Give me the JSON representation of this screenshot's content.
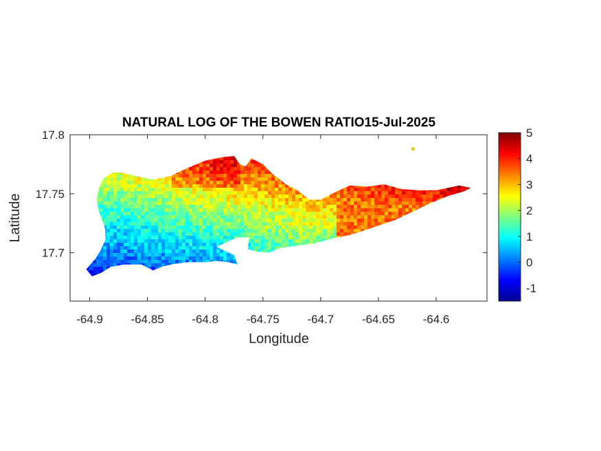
{
  "chart_data": {
    "type": "heatmap",
    "title": "NATURAL LOG OF THE BOWEN RATIO15-Jul-2025",
    "xlabel": "Longitude",
    "ylabel": "Latitude",
    "xlim": [
      -64.92,
      -64.55
    ],
    "ylim": [
      17.66,
      17.8
    ],
    "xticks": [
      -64.9,
      -64.85,
      -64.8,
      -64.75,
      -64.7,
      -64.65,
      -64.6
    ],
    "xtick_labels": [
      "-64.9",
      "-64.85",
      "-64.8",
      "-64.75",
      "-64.7",
      "-64.65",
      "-64.6"
    ],
    "yticks": [
      17.7,
      17.75,
      17.8
    ],
    "ytick_labels": [
      "17.7",
      "17.75",
      "17.8"
    ],
    "colorbar": {
      "colormap": "jet",
      "clim": [
        -1.5,
        5
      ],
      "ticks": [
        -1,
        0,
        1,
        2,
        3,
        4,
        5
      ],
      "tick_labels": [
        "-1",
        "0",
        "1",
        "2",
        "3",
        "4",
        "5"
      ],
      "placement": "right"
    },
    "grid": false,
    "field_trend": "values increase from about -1 in the southwest to about 4.5 in the north-central and eastern parts of the island",
    "island_outline_lonlat": [
      [
        -64.898,
        17.68
      ],
      [
        -64.89,
        17.683
      ],
      [
        -64.882,
        17.688
      ],
      [
        -64.87,
        17.69
      ],
      [
        -64.855,
        17.69
      ],
      [
        -64.845,
        17.685
      ],
      [
        -64.838,
        17.688
      ],
      [
        -64.83,
        17.69
      ],
      [
        -64.815,
        17.692
      ],
      [
        -64.8,
        17.692
      ],
      [
        -64.79,
        17.693
      ],
      [
        -64.78,
        17.692
      ],
      [
        -64.772,
        17.69
      ],
      [
        -64.775,
        17.698
      ],
      [
        -64.79,
        17.705
      ],
      [
        -64.772,
        17.713
      ],
      [
        -64.762,
        17.713
      ],
      [
        -64.763,
        17.703
      ],
      [
        -64.755,
        17.701
      ],
      [
        -64.745,
        17.7
      ],
      [
        -64.735,
        17.704
      ],
      [
        -64.72,
        17.706
      ],
      [
        -64.705,
        17.708
      ],
      [
        -64.69,
        17.712
      ],
      [
        -64.675,
        17.715
      ],
      [
        -64.665,
        17.718
      ],
      [
        -64.65,
        17.723
      ],
      [
        -64.635,
        17.728
      ],
      [
        -64.62,
        17.735
      ],
      [
        -64.605,
        17.742
      ],
      [
        -64.59,
        17.748
      ],
      [
        -64.576,
        17.752
      ],
      [
        -64.57,
        17.755
      ],
      [
        -64.58,
        17.757
      ],
      [
        -64.6,
        17.753
      ],
      [
        -64.615,
        17.753
      ],
      [
        -64.63,
        17.754
      ],
      [
        -64.645,
        17.758
      ],
      [
        -64.66,
        17.756
      ],
      [
        -64.675,
        17.757
      ],
      [
        -64.69,
        17.75
      ],
      [
        -64.7,
        17.745
      ],
      [
        -64.71,
        17.745
      ],
      [
        -64.72,
        17.753
      ],
      [
        -64.73,
        17.758
      ],
      [
        -64.742,
        17.767
      ],
      [
        -64.75,
        17.775
      ],
      [
        -64.76,
        17.78
      ],
      [
        -64.765,
        17.773
      ],
      [
        -64.77,
        17.775
      ],
      [
        -64.775,
        17.782
      ],
      [
        -64.785,
        17.781
      ],
      [
        -64.8,
        17.778
      ],
      [
        -64.815,
        17.772
      ],
      [
        -64.83,
        17.765
      ],
      [
        -64.845,
        17.762
      ],
      [
        -64.86,
        17.765
      ],
      [
        -64.873,
        17.768
      ],
      [
        -64.88,
        17.768
      ],
      [
        -64.888,
        17.763
      ],
      [
        -64.892,
        17.755
      ],
      [
        -64.894,
        17.745
      ],
      [
        -64.892,
        17.735
      ],
      [
        -64.887,
        17.722
      ],
      [
        -64.886,
        17.712
      ],
      [
        -64.89,
        17.703
      ],
      [
        -64.895,
        17.695
      ],
      [
        -64.903,
        17.686
      ]
    ],
    "islet_lonlat": [
      -64.62,
      17.788
    ]
  }
}
